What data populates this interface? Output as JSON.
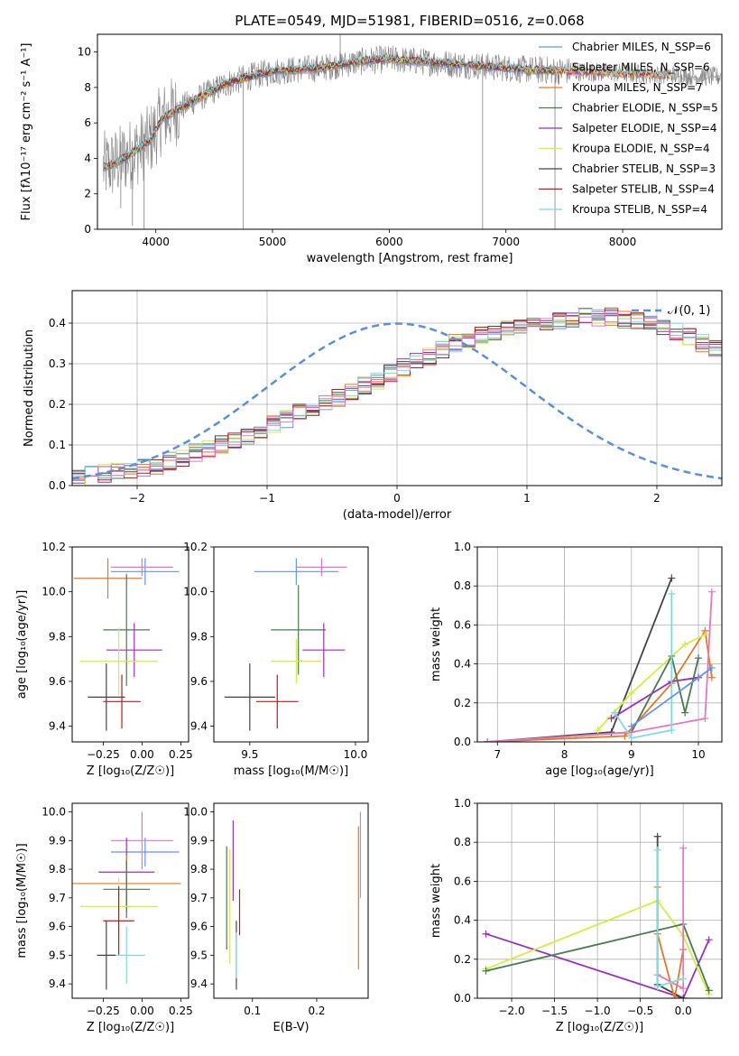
{
  "colors": {
    "gray": "#808080",
    "chabrier_miles": "#6495ed",
    "salpeter_miles": "#a0a0a0",
    "kroupa_miles": "#e87722",
    "chabrier_elodie": "#4a7a50",
    "salpeter_elodie": "#9a2ec0",
    "kroupa_elodie": "#d6ec40",
    "chabrier_stelib": "#444444",
    "salpeter_stelib": "#c0191b",
    "kroupa_stelib": "#7fdbe0",
    "pink": "#e377c2",
    "normal_line": "#5b8fd6"
  },
  "chart_data": [
    {
      "type": "line",
      "title": "PLATE=0549, MJD=51981, FIBERID=0516, z=0.068",
      "xlabel": "wavelength [Angstrom, rest frame]",
      "ylabel": "Flux [fλ10⁻¹⁷ erg cm⁻² s⁻¹ A⁻¹]",
      "xlim": [
        3500,
        8850
      ],
      "ylim": [
        0,
        11
      ],
      "xticks": [
        "4000",
        "5000",
        "6000",
        "7000",
        "8000"
      ],
      "yticks": [
        "0",
        "2",
        "4",
        "6",
        "8",
        "10"
      ],
      "legend_position": "right",
      "legend": [
        "Chabrier MILES, N_SSP=6",
        "Salpeter MILES, N_SSP=6",
        "Kroupa MILES, N_SSP=7",
        "Chabrier ELODIE, N_SSP=5",
        "Salpeter ELODIE, N_SSP=4",
        "Kroupa ELODIE, N_SSP=4",
        "Chabrier STELIB, N_SSP=3",
        "Salpeter STELIB, N_SSP=4",
        "Kroupa STELIB, N_SSP=4"
      ],
      "continuum": {
        "x": [
          3550,
          3650,
          3800,
          3950,
          4050,
          4200,
          4400,
          4600,
          4800,
          5000,
          5200,
          5400,
          5600,
          5800,
          6000,
          6200,
          6400,
          6600,
          6800,
          7000,
          7200,
          7400,
          7600,
          7800,
          8000,
          8200,
          8400,
          8600,
          8800
        ],
        "y": [
          3.5,
          3.7,
          4.3,
          5.0,
          6.2,
          6.8,
          7.5,
          8.2,
          8.6,
          8.9,
          9.0,
          9.1,
          9.3,
          9.5,
          9.6,
          9.5,
          9.4,
          9.3,
          9.2,
          9.1,
          9.0,
          8.95,
          8.9,
          8.85,
          8.8,
          8.75,
          8.7,
          8.65,
          8.6
        ]
      }
    },
    {
      "type": "histogram",
      "xlabel": "(data-model)/error",
      "ylabel": "Normed distribution",
      "xlim": [
        -2.5,
        2.5
      ],
      "ylim": [
        0,
        0.48
      ],
      "xticks": [
        "−2",
        "−1",
        "0",
        "1",
        "2"
      ],
      "yticks": [
        "0.0",
        "0.1",
        "0.2",
        "0.3",
        "0.4"
      ],
      "grid": true,
      "legend_position": "top-right",
      "legend": [
        "𝒩(0, 1)"
      ],
      "bin_width": 0.1,
      "bin_start": -2.5,
      "envelope": [
        0.02,
        0.025,
        0.03,
        0.035,
        0.04,
        0.045,
        0.05,
        0.06,
        0.07,
        0.08,
        0.09,
        0.1,
        0.11,
        0.12,
        0.135,
        0.15,
        0.165,
        0.18,
        0.19,
        0.2,
        0.215,
        0.23,
        0.245,
        0.26,
        0.275,
        0.29,
        0.305,
        0.32,
        0.335,
        0.35,
        0.36,
        0.37,
        0.38,
        0.385,
        0.39,
        0.395,
        0.4,
        0.405,
        0.41,
        0.415,
        0.415,
        0.415,
        0.41,
        0.405,
        0.4,
        0.39,
        0.38,
        0.365,
        0.35,
        0.335,
        0.32,
        0.305,
        0.29,
        0.275,
        0.26,
        0.245,
        0.23,
        0.21,
        0.195,
        0.18,
        0.165,
        0.15,
        0.135,
        0.12,
        0.11,
        0.1,
        0.09,
        0.08,
        0.07,
        0.06,
        0.055,
        0.05,
        0.045,
        0.04,
        0.035,
        0.03,
        0.025,
        0.02,
        0.02,
        0.02
      ]
    },
    {
      "type": "scatter",
      "xlabel": "Z [log₁₀(Z/Z☉)]",
      "ylabel": "age  [log₁₀(age/yr)]",
      "xlim": [
        -0.45,
        0.3
      ],
      "ylim": [
        9.33,
        10.2
      ],
      "xticks": [
        "−0.25",
        "0.00",
        "0.25"
      ],
      "yticks": [
        "9.4",
        "9.6",
        "9.8",
        "10.0",
        "10.2"
      ],
      "points": [
        {
          "series": "Chabrier MILES",
          "x": 0.02,
          "y": 10.09,
          "xerr": 0.22,
          "yerr": 0.06
        },
        {
          "series": "Kroupa MILES",
          "x": -0.22,
          "y": 10.06,
          "xerr": 0.22,
          "yerr": 0.09
        },
        {
          "series": "pink",
          "x": 0.0,
          "y": 10.11,
          "xerr": 0.2,
          "yerr": 0.04
        },
        {
          "series": "Chabrier ELODIE",
          "x": -0.1,
          "y": 9.83,
          "xerr": 0.15,
          "yerr": 0.25
        },
        {
          "series": "Salpeter ELODIE",
          "x": -0.05,
          "y": 9.74,
          "xerr": 0.18,
          "yerr": 0.12
        },
        {
          "series": "Kroupa ELODIE",
          "x": -0.15,
          "y": 9.69,
          "xerr": 0.25,
          "yerr": 0.15
        },
        {
          "series": "Chabrier STELIB",
          "x": -0.23,
          "y": 9.53,
          "xerr": 0.12,
          "yerr": 0.15
        },
        {
          "series": "Salpeter STELIB",
          "x": -0.13,
          "y": 9.51,
          "xerr": 0.12,
          "yerr": 0.12
        }
      ]
    },
    {
      "type": "scatter",
      "xlabel": "mass [log₁₀(M/M☉)]",
      "ylabel": "",
      "xlim": [
        9.33,
        10.06
      ],
      "ylim": [
        9.33,
        10.2
      ],
      "xticks": [
        "9.5",
        "10.0"
      ],
      "yticks": [
        "9.4",
        "9.6",
        "9.8",
        "10.0",
        "10.2"
      ],
      "points": [
        {
          "series": "Chabrier MILES",
          "x": 9.72,
          "y": 10.09,
          "xerr": 0.2,
          "yerr": 0.06
        },
        {
          "series": "pink",
          "x": 9.84,
          "y": 10.11,
          "xerr": 0.12,
          "yerr": 0.04
        },
        {
          "series": "Chabrier ELODIE",
          "x": 9.73,
          "y": 9.83,
          "xerr": 0.13,
          "yerr": 0.2
        },
        {
          "series": "Salpeter ELODIE",
          "x": 9.85,
          "y": 9.74,
          "xerr": 0.1,
          "yerr": 0.12
        },
        {
          "series": "Kroupa ELODIE",
          "x": 9.72,
          "y": 9.69,
          "xerr": 0.12,
          "yerr": 0.1
        },
        {
          "series": "Chabrier STELIB",
          "x": 9.5,
          "y": 9.53,
          "xerr": 0.12,
          "yerr": 0.15
        },
        {
          "series": "Salpeter STELIB",
          "x": 9.63,
          "y": 9.51,
          "xerr": 0.1,
          "yerr": 0.12
        }
      ]
    },
    {
      "type": "line",
      "xlabel": "age  [log₁₀(age/yr)]",
      "ylabel": "mass weight",
      "xlim": [
        6.7,
        10.35
      ],
      "ylim": [
        0,
        1.0
      ],
      "xticks": [
        "7",
        "8",
        "9",
        "10"
      ],
      "yticks": [
        "0.0",
        "0.2",
        "0.4",
        "0.6",
        "0.8",
        "1.0"
      ],
      "grid": true,
      "series": [
        {
          "series": "Chabrier STELIB",
          "x": [
            6.85,
            8.7,
            9.6
          ],
          "y": [
            0.0,
            0.05,
            0.84
          ]
        },
        {
          "series": "Kroupa MILES",
          "x": [
            6.85,
            8.9,
            9.6,
            10.1,
            10.2
          ],
          "y": [
            0.0,
            0.03,
            0.3,
            0.57,
            0.33
          ]
        },
        {
          "series": "Kroupa ELODIE",
          "x": [
            8.5,
            9.0,
            9.8,
            10.1
          ],
          "y": [
            0.06,
            0.25,
            0.5,
            0.55
          ]
        },
        {
          "series": "Salpeter ELODIE",
          "x": [
            8.7,
            9.6,
            10.0
          ],
          "y": [
            0.12,
            0.31,
            0.33
          ]
        },
        {
          "series": "Chabrier ELODIE",
          "x": [
            6.85,
            9.0,
            9.6,
            9.8,
            10.0
          ],
          "y": [
            0.0,
            0.05,
            0.44,
            0.15,
            0.43
          ]
        },
        {
          "series": "pink",
          "x": [
            6.85,
            9.0,
            10.1,
            10.2
          ],
          "y": [
            0.0,
            0.05,
            0.12,
            0.77
          ]
        },
        {
          "series": "Kroupa STELIB",
          "x": [
            8.75,
            9.0,
            9.6,
            9.6
          ],
          "y": [
            0.15,
            0.02,
            0.06,
            0.76
          ]
        },
        {
          "series": "Chabrier MILES",
          "x": [
            9.0,
            10.2
          ],
          "y": [
            0.08,
            0.38
          ]
        }
      ]
    },
    {
      "type": "scatter",
      "xlabel": "Z [log₁₀(Z/Z☉)]",
      "ylabel": "mass [log₁₀(M/M☉)]",
      "xlim": [
        -0.45,
        0.3
      ],
      "ylim": [
        9.35,
        10.03
      ],
      "xticks": [
        "−0.25",
        "0.00",
        "0.25"
      ],
      "yticks": [
        "9.4",
        "9.5",
        "9.6",
        "9.7",
        "9.8",
        "9.9",
        "10.0"
      ],
      "points": [
        {
          "series": "Chabrier MILES",
          "x": 0.02,
          "y": 9.86,
          "xerr": 0.22,
          "yerr": 0.05
        },
        {
          "series": "pink",
          "x": 0.0,
          "y": 9.9,
          "xerr": 0.2,
          "yerr": 0.1
        },
        {
          "series": "Salpeter ELODIE",
          "x": -0.1,
          "y": 9.79,
          "xerr": 0.18,
          "yerr": 0.12
        },
        {
          "series": "Kroupa MILES",
          "x": -0.1,
          "y": 9.75,
          "xerr": 0.35,
          "yerr": 0.1
        },
        {
          "series": "Chabrier ELODIE",
          "x": -0.1,
          "y": 9.73,
          "xerr": 0.15,
          "yerr": 0.1
        },
        {
          "series": "Kroupa ELODIE",
          "x": -0.15,
          "y": 9.67,
          "xerr": 0.25,
          "yerr": 0.1
        },
        {
          "series": "Salpeter STELIB",
          "x": -0.15,
          "y": 9.62,
          "xerr": 0.1,
          "yerr": 0.12
        },
        {
          "series": "Kroupa STELIB",
          "x": -0.1,
          "y": 9.5,
          "xerr": 0.12,
          "yerr": 0.1
        },
        {
          "series": "Chabrier STELIB",
          "x": -0.23,
          "y": 9.5,
          "xerr": 0.06,
          "yerr": 0.12
        }
      ]
    },
    {
      "type": "scatter",
      "xlabel": "E(B-V)",
      "ylabel": "",
      "xlim": [
        0.04,
        0.28
      ],
      "ylim": [
        9.35,
        10.03
      ],
      "xticks": [
        "0.1",
        "0.2"
      ],
      "yticks": [
        "9.4",
        "9.5",
        "9.6",
        "9.7",
        "9.8",
        "9.9",
        "10.0"
      ],
      "points": [
        {
          "series": "Kroupa ELODIE",
          "x": 0.065,
          "y": 9.67,
          "yerr": 0.2
        },
        {
          "series": "Salpeter ELODIE",
          "x": 0.07,
          "y": 9.83,
          "yerr": 0.14
        },
        {
          "series": "Chabrier ELODIE",
          "x": 0.06,
          "y": 9.7,
          "yerr": 0.18
        },
        {
          "series": "Chabrier STELIB",
          "x": 0.075,
          "y": 9.5,
          "yerr": 0.12
        },
        {
          "series": "Kroupa STELIB",
          "x": 0.075,
          "y": 9.5,
          "yerr": 0.08
        },
        {
          "series": "Salpeter STELIB",
          "x": 0.08,
          "y": 9.65,
          "yerr": 0.08
        },
        {
          "series": "Kroupa MILES",
          "x": 0.265,
          "y": 9.7,
          "yerr": 0.25
        },
        {
          "series": "pink",
          "x": 0.268,
          "y": 9.85,
          "yerr": 0.15
        }
      ]
    },
    {
      "type": "line",
      "xlabel": "Z [log₁₀(Z/Z☉)]",
      "ylabel": "mass weight",
      "xlim": [
        -2.4,
        0.45
      ],
      "ylim": [
        0,
        1.0
      ],
      "xticks": [
        "−2.0",
        "−1.5",
        "−1.0",
        "−0.5",
        "0.0"
      ],
      "yticks": [
        "0.0",
        "0.2",
        "0.4",
        "0.6",
        "0.8",
        "1.0"
      ],
      "grid": true,
      "series": [
        {
          "series": "Salpeter ELODIE",
          "x": [
            -2.3,
            0.0,
            0.3
          ],
          "y": [
            0.33,
            0.0,
            0.3
          ]
        },
        {
          "series": "Kroupa ELODIE",
          "x": [
            -2.3,
            -0.3,
            0.0,
            0.3
          ],
          "y": [
            0.15,
            0.5,
            0.32,
            0.02
          ]
        },
        {
          "series": "Chabrier ELODIE",
          "x": [
            -2.3,
            0.0,
            0.3
          ],
          "y": [
            0.14,
            0.38,
            0.04
          ]
        },
        {
          "series": "Chabrier STELIB",
          "x": [
            -0.3,
            -0.3,
            0.0
          ],
          "y": [
            0.83,
            0.07,
            0.0
          ]
        },
        {
          "series": "Kroupa MILES",
          "x": [
            -0.3,
            -0.3,
            -0.1,
            0.0
          ],
          "y": [
            0.57,
            0.33,
            0.0,
            0.25
          ]
        },
        {
          "series": "pink",
          "x": [
            0.0,
            0.0,
            -0.3
          ],
          "y": [
            0.77,
            0.05,
            0.12
          ]
        },
        {
          "series": "Kroupa STELIB",
          "x": [
            -0.3,
            -0.3,
            0.0
          ],
          "y": [
            0.76,
            0.06,
            0.1
          ]
        }
      ]
    }
  ]
}
